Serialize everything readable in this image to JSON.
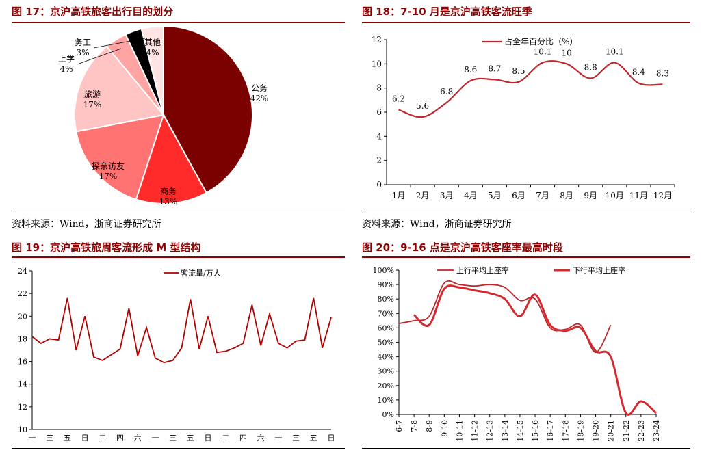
{
  "source_text": "资料来源：Wind，浙商证券研究所",
  "panels": {
    "p17": {
      "title": "图 17：京沪高铁旅客出行目的划分"
    },
    "p18": {
      "title": "图 18：7-10 月是京沪高铁客流旺季"
    },
    "p19": {
      "title": "图 19：京沪高铁旅周客流形成 M 型结构"
    },
    "p20": {
      "title": "图 20：9-16 点是京沪高铁客座率最高时段"
    }
  },
  "chart_data": [
    {
      "type": "pie",
      "title": "图 17：京沪高铁旅客出行目的划分",
      "slices": [
        {
          "label": "公务",
          "pct": "42%",
          "value": 42,
          "color": "#7b0000"
        },
        {
          "label": "商务",
          "pct": "13%",
          "value": 13,
          "color": "#ff2a2a"
        },
        {
          "label": "探亲访友",
          "pct": "17%",
          "value": 17,
          "color": "#ff7373"
        },
        {
          "label": "旅游",
          "pct": "17%",
          "value": 17,
          "color": "#ffc4c4"
        },
        {
          "label": "上学",
          "pct": "4%",
          "value": 4,
          "color": "#ffa3a3"
        },
        {
          "label": "务工",
          "pct": "3%",
          "value": 3,
          "color": "#000000"
        },
        {
          "label": "其他",
          "pct": "4%",
          "value": 4,
          "color": "#ffe4e4"
        }
      ]
    },
    {
      "type": "line",
      "title": "图 18：7-10 月是京沪高铁客流旺季",
      "categories": [
        "1月",
        "2月",
        "3月",
        "4月",
        "5月",
        "6月",
        "7月",
        "8月",
        "9月",
        "10月",
        "11月",
        "12月"
      ],
      "series": [
        {
          "name": "占全年百分比（%）",
          "values": [
            6.2,
            5.6,
            6.8,
            8.6,
            8.7,
            8.5,
            10.1,
            10,
            8.8,
            10.1,
            8.4,
            8.3
          ],
          "color": "#c0272d"
        }
      ],
      "data_labels": [
        "6.2",
        "5.6",
        "6.8",
        "8.6",
        "8.7",
        "8.5",
        "10.1",
        "10",
        "8.8",
        "10.1",
        "8.4",
        "8.3"
      ],
      "ylim": [
        0,
        12
      ],
      "yticks": [
        "0",
        "2",
        "4",
        "6",
        "8",
        "10",
        "12"
      ],
      "legend": "top-left"
    },
    {
      "type": "line",
      "title": "图 19：京沪高铁旅周客流形成 M 型结构",
      "x_labels": [
        "一",
        "三",
        "五",
        "日",
        "二",
        "四",
        "六",
        "一",
        "三",
        "五",
        "日",
        "二",
        "四",
        "六",
        "一",
        "三",
        "五",
        "日"
      ],
      "series": [
        {
          "name": "客流量/万人",
          "values": [
            18.2,
            17.6,
            18.0,
            17.9,
            21.6,
            17.0,
            20.0,
            16.4,
            16.1,
            16.6,
            17.1,
            20.7,
            16.5,
            19.0,
            16.3,
            15.9,
            16.1,
            17.2,
            21.5,
            17.1,
            20.0,
            16.8,
            16.9,
            17.2,
            17.6,
            21.0,
            17.4,
            20.2,
            17.6,
            17.2,
            17.8,
            17.9,
            21.6,
            17.2,
            19.9
          ],
          "color": "#b00000"
        }
      ],
      "ylim": [
        10,
        24
      ],
      "yticks": [
        "10",
        "12",
        "14",
        "16",
        "18",
        "20",
        "22",
        "24"
      ],
      "legend": "top-center"
    },
    {
      "type": "line",
      "title": "图 20：9-16 点是京沪高铁客座率最高时段",
      "categories": [
        "6-7",
        "7-8",
        "8-9",
        "9-10",
        "10-11",
        "11-12",
        "12-13",
        "13-14",
        "14-15",
        "15-16",
        "16-17",
        "17-18",
        "18-19",
        "19-20",
        "20-21",
        "21-22",
        "22-23",
        "23-24"
      ],
      "series": [
        {
          "name": "上行平均上座率",
          "values": [
            63,
            65,
            68,
            91,
            90,
            89,
            90,
            88,
            79,
            80,
            60,
            59,
            62,
            43,
            62,
            null,
            null,
            null
          ],
          "color": "#c0272d"
        },
        {
          "name": "下行平均上座率",
          "values": [
            null,
            69,
            62,
            87,
            88,
            86,
            84,
            80,
            68,
            83,
            62,
            58,
            60,
            44,
            40,
            1,
            9,
            1
          ],
          "color": "#d42a2f"
        }
      ],
      "ylim": [
        0,
        100
      ],
      "yticks": [
        "0%",
        "10%",
        "20%",
        "30%",
        "40%",
        "50%",
        "60%",
        "70%",
        "80%",
        "90%",
        "100%"
      ],
      "legend": "top"
    }
  ]
}
